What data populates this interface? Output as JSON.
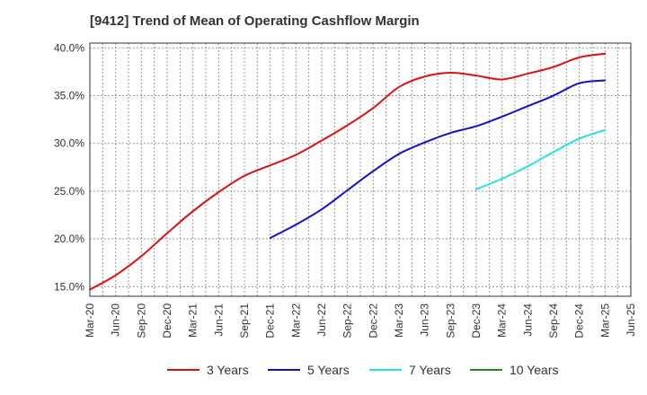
{
  "chart_data": {
    "type": "line",
    "title": "[9412]  Trend of Mean of Operating Cashflow Margin",
    "xlabel": "",
    "ylabel": "",
    "ylim": [
      14.0,
      40.5
    ],
    "yticks": [
      15.0,
      20.0,
      25.0,
      30.0,
      35.0,
      40.0
    ],
    "ytick_labels": [
      "15.0%",
      "20.0%",
      "25.0%",
      "30.0%",
      "35.0%",
      "40.0%"
    ],
    "xtick_labels": [
      "Mar-20",
      "Jun-20",
      "Sep-20",
      "Dec-20",
      "Mar-21",
      "Jun-21",
      "Sep-21",
      "Dec-21",
      "Mar-22",
      "Jun-22",
      "Sep-22",
      "Dec-22",
      "Mar-23",
      "Jun-23",
      "Sep-23",
      "Dec-23",
      "Mar-24",
      "Jun-24",
      "Sep-24",
      "Dec-24",
      "Mar-25",
      "Jun-25"
    ],
    "grid": true,
    "legend_position": "bottom",
    "series": [
      {
        "name": "3 Years",
        "color": "#dd1111",
        "start_index": 0,
        "values": [
          14.7,
          16.2,
          18.2,
          20.6,
          22.9,
          24.9,
          26.6,
          27.7,
          28.8,
          30.3,
          31.9,
          33.7,
          35.9,
          37.0,
          37.4,
          37.1,
          36.7,
          37.3,
          38.0,
          39.0,
          39.4
        ]
      },
      {
        "name": "5 Years",
        "color": "#1111cc",
        "start_index": 7,
        "values": [
          20.1,
          21.5,
          23.1,
          25.1,
          27.1,
          28.9,
          30.1,
          31.1,
          31.8,
          32.8,
          33.9,
          35.0,
          36.3,
          36.6
        ]
      },
      {
        "name": "7 Years",
        "color": "#22e0e6",
        "start_index": 15,
        "values": [
          25.2,
          26.3,
          27.6,
          29.1,
          30.5,
          31.4
        ]
      },
      {
        "name": "10 Years",
        "color": "#228822",
        "start_index": 0,
        "values": []
      }
    ]
  }
}
